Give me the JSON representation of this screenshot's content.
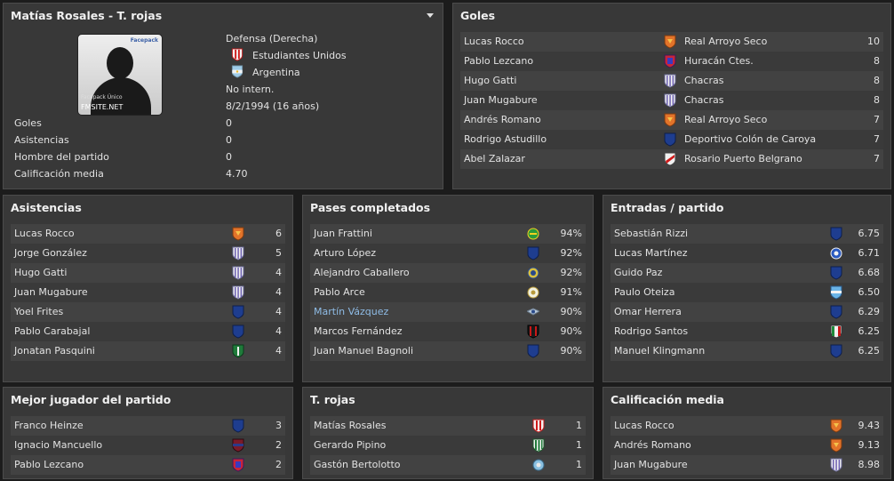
{
  "profile": {
    "title": "Matías Rosales - T. rojas",
    "photo_caption_1": "Facepack Único",
    "photo_caption_2": "FMSITE.NET",
    "position": "Defensa (Derecha)",
    "club": "Estudiantes Unidos",
    "nation": "Argentina",
    "intl": "No intern.",
    "birth": "8/2/1994 (16 años)",
    "stats": [
      {
        "label": "Goles",
        "value": "0"
      },
      {
        "label": "Asistencias",
        "value": "0"
      },
      {
        "label": "Hombre del partido",
        "value": "0"
      },
      {
        "label": "Calificación media",
        "value": "4.70"
      }
    ]
  },
  "goles": {
    "title": "Goles",
    "rows": [
      {
        "name": "Lucas Rocco",
        "team": "Real Arroyo Seco",
        "badge": "shield-orange",
        "value": "10"
      },
      {
        "name": "Pablo Lezcano",
        "team": "Huracán Ctes.",
        "badge": "shield-huracan",
        "value": "8"
      },
      {
        "name": "Hugo Gatti",
        "team": "Chacras",
        "badge": "shield-stripes",
        "value": "8"
      },
      {
        "name": "Juan Mugabure",
        "team": "Chacras",
        "badge": "shield-stripes",
        "value": "8"
      },
      {
        "name": "Andrés Romano",
        "team": "Real Arroyo Seco",
        "badge": "shield-orange",
        "value": "7"
      },
      {
        "name": "Rodrigo Astudillo",
        "team": "Deportivo Colón de Caroya",
        "badge": "shield-blue",
        "value": "7"
      },
      {
        "name": "Abel Zalazar",
        "team": "Rosario Puerto Belgrano",
        "badge": "shield-red-white",
        "value": "7"
      }
    ]
  },
  "asistencias": {
    "title": "Asistencias",
    "rows": [
      {
        "name": "Lucas Rocco",
        "badge": "shield-orange",
        "value": "6"
      },
      {
        "name": "Jorge González",
        "badge": "shield-stripes",
        "value": "5"
      },
      {
        "name": "Hugo Gatti",
        "badge": "shield-stripes",
        "value": "4"
      },
      {
        "name": "Juan Mugabure",
        "badge": "shield-stripes",
        "value": "4"
      },
      {
        "name": "Yoel Frites",
        "badge": "shield-blue",
        "value": "4"
      },
      {
        "name": "Pablo Carabajal",
        "badge": "shield-blue",
        "value": "4"
      },
      {
        "name": "Jonatan Pasquini",
        "badge": "shield-green",
        "value": "4"
      }
    ]
  },
  "pases": {
    "title": "Pases completados",
    "rows": [
      {
        "name": "Juan Frattini",
        "badge": "crest-green-yellow",
        "value": "94%"
      },
      {
        "name": "Arturo López",
        "badge": "shield-blue",
        "value": "92%"
      },
      {
        "name": "Alejandro Caballero",
        "badge": "crest-blue-yellow",
        "value": "92%"
      },
      {
        "name": "Pablo Arce",
        "badge": "crest-white",
        "value": "91%"
      },
      {
        "name": "Martín Vázquez",
        "badge": "crest-wings",
        "value": "90%"
      },
      {
        "name": "Marcos Fernández",
        "badge": "shield-red-black",
        "value": "90%"
      },
      {
        "name": "Juan Manuel Bagnoli",
        "badge": "shield-blue",
        "value": "90%"
      }
    ]
  },
  "entradas": {
    "title": "Entradas / partido",
    "rows": [
      {
        "name": "Sebastián Rizzi",
        "badge": "shield-blue",
        "value": "6.75"
      },
      {
        "name": "Lucas Martínez",
        "badge": "crest-round-blue",
        "value": "6.71"
      },
      {
        "name": "Guido Paz",
        "badge": "shield-blue",
        "value": "6.68"
      },
      {
        "name": "Paulo Oteiza",
        "badge": "shield-sky",
        "value": "6.50"
      },
      {
        "name": "Omar Herrera",
        "badge": "shield-blue",
        "value": "6.29"
      },
      {
        "name": "Rodrigo Santos",
        "badge": "shield-italy",
        "value": "6.25"
      },
      {
        "name": "Manuel Klingmann",
        "badge": "shield-blue",
        "value": "6.25"
      }
    ]
  },
  "mejor": {
    "title": "Mejor jugador del partido",
    "rows": [
      {
        "name": "Franco Heinze",
        "badge": "shield-blue",
        "value": "3"
      },
      {
        "name": "Ignacio Mancuello",
        "badge": "shield-maroon",
        "value": "2"
      },
      {
        "name": "Pablo Lezcano",
        "badge": "shield-huracan",
        "value": "2"
      }
    ]
  },
  "trojas": {
    "title": "T. rojas",
    "rows": [
      {
        "name": "Matías Rosales",
        "badge": "shield-estudiantes",
        "value": "1"
      },
      {
        "name": "Gerardo Pipino",
        "badge": "shield-green-stripes",
        "value": "1"
      },
      {
        "name": "Gastón Bertolotto",
        "badge": "crest-sky",
        "value": "1"
      }
    ]
  },
  "calif": {
    "title": "Calificación media",
    "rows": [
      {
        "name": "Lucas Rocco",
        "badge": "shield-orange",
        "value": "9.43"
      },
      {
        "name": "Andrés Romano",
        "badge": "shield-orange",
        "value": "9.13"
      },
      {
        "name": "Juan Mugabure",
        "badge": "shield-stripes",
        "value": "8.98"
      }
    ]
  },
  "highlight_color": "#8fbce6"
}
